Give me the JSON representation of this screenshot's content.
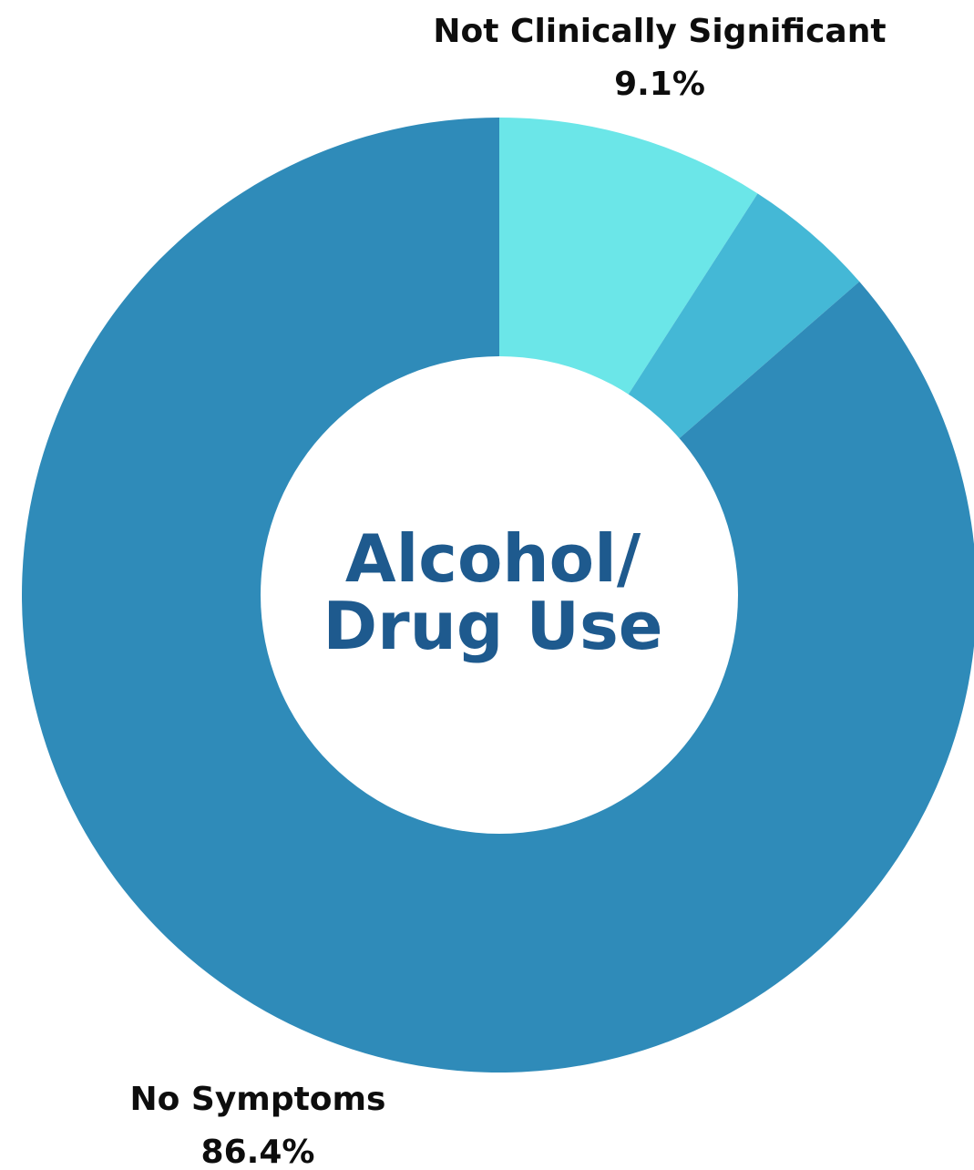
{
  "chart_data": {
    "type": "pie",
    "style": "donut",
    "center_title": [
      "Alcohol/",
      "Drug Use"
    ],
    "slices": [
      {
        "name": "Not Clinically Significant",
        "value_label": "9.1%",
        "value": 9.1,
        "color": "#6be6e8",
        "labeled": true
      },
      {
        "name": "",
        "value_label": "",
        "value": 4.5,
        "color": "#44b8d6",
        "labeled": false
      },
      {
        "name": "No Symptoms",
        "value_label": "86.4%",
        "value": 86.4,
        "color": "#2f8bb9",
        "labeled": true
      }
    ],
    "start_angle_deg": 0,
    "direction": "clockwise",
    "legend": "none",
    "background": "#ffffff"
  }
}
